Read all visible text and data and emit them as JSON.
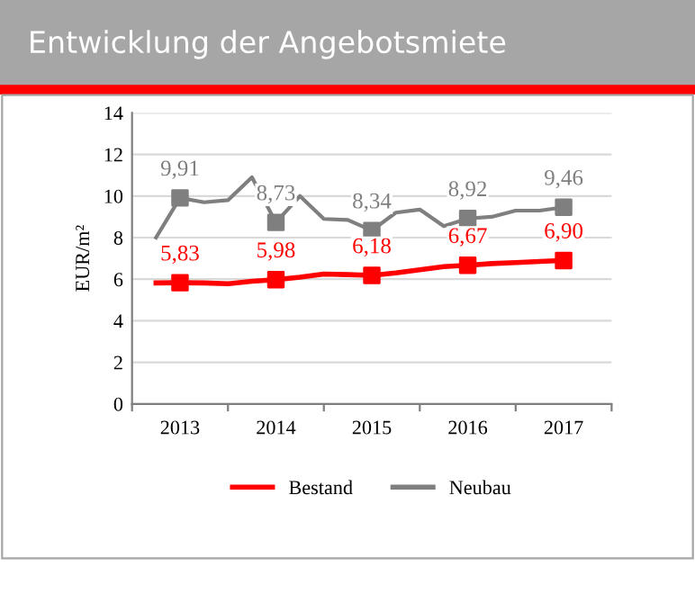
{
  "chart_data": {
    "type": "line",
    "title": "Entwicklung der Angebotsmiete",
    "ylabel": "EUR/m²",
    "x": [
      2012.75,
      2013.0,
      2013.25,
      2013.5,
      2013.75,
      2014.0,
      2014.25,
      2014.5,
      2014.75,
      2015.0,
      2015.25,
      2015.5,
      2015.75,
      2016.0,
      2016.25,
      2016.5,
      2016.75,
      2017.0
    ],
    "xlim": [
      2012.5,
      2017.5
    ],
    "xticks": [
      {
        "value": 2012.5,
        "label": null
      },
      {
        "value": 2013,
        "label": "2013"
      },
      {
        "value": 2013.5,
        "label": null
      },
      {
        "value": 2014,
        "label": "2014"
      },
      {
        "value": 2014.5,
        "label": null
      },
      {
        "value": 2015,
        "label": "2015"
      },
      {
        "value": 2015.5,
        "label": null
      },
      {
        "value": 2016,
        "label": "2016"
      },
      {
        "value": 2016.5,
        "label": null
      },
      {
        "value": 2017,
        "label": "2017"
      },
      {
        "value": 2017.5,
        "label": null
      }
    ],
    "ylim": [
      0,
      14
    ],
    "yticks": [
      0,
      2,
      4,
      6,
      8,
      10,
      12,
      14
    ],
    "grid": "y",
    "legend": "bottom",
    "series": [
      {
        "name": "Bestand",
        "color": "#ff0000",
        "values": [
          5.82,
          5.83,
          5.82,
          5.78,
          5.9,
          5.98,
          6.1,
          6.25,
          6.22,
          6.18,
          6.3,
          6.45,
          6.6,
          6.67,
          6.75,
          6.8,
          6.85,
          6.9
        ]
      },
      {
        "name": "Neubau",
        "color": "#7f7f7f",
        "values": [
          8.0,
          9.91,
          9.7,
          9.8,
          10.9,
          8.73,
          10.0,
          8.9,
          8.85,
          8.34,
          9.2,
          9.35,
          8.55,
          8.92,
          9.0,
          9.3,
          9.3,
          9.46
        ]
      },
      {
        "type": "scatter",
        "marker": "square",
        "color": "#ff0000",
        "x": [
          2013,
          2014,
          2015,
          2016,
          2017
        ],
        "values": [
          5.83,
          5.98,
          6.18,
          6.67,
          6.9
        ],
        "value_labels": [
          "5,83",
          "5,98",
          "6,18",
          "6,67",
          "6,90"
        ]
      },
      {
        "type": "scatter",
        "marker": "square",
        "color": "#7f7f7f",
        "x": [
          2013,
          2014,
          2015,
          2016,
          2017
        ],
        "values": [
          9.91,
          8.73,
          8.34,
          8.92,
          9.46
        ],
        "value_labels": [
          "9,91",
          "8,73",
          "8,34",
          "8,92",
          "9,46"
        ]
      }
    ]
  }
}
